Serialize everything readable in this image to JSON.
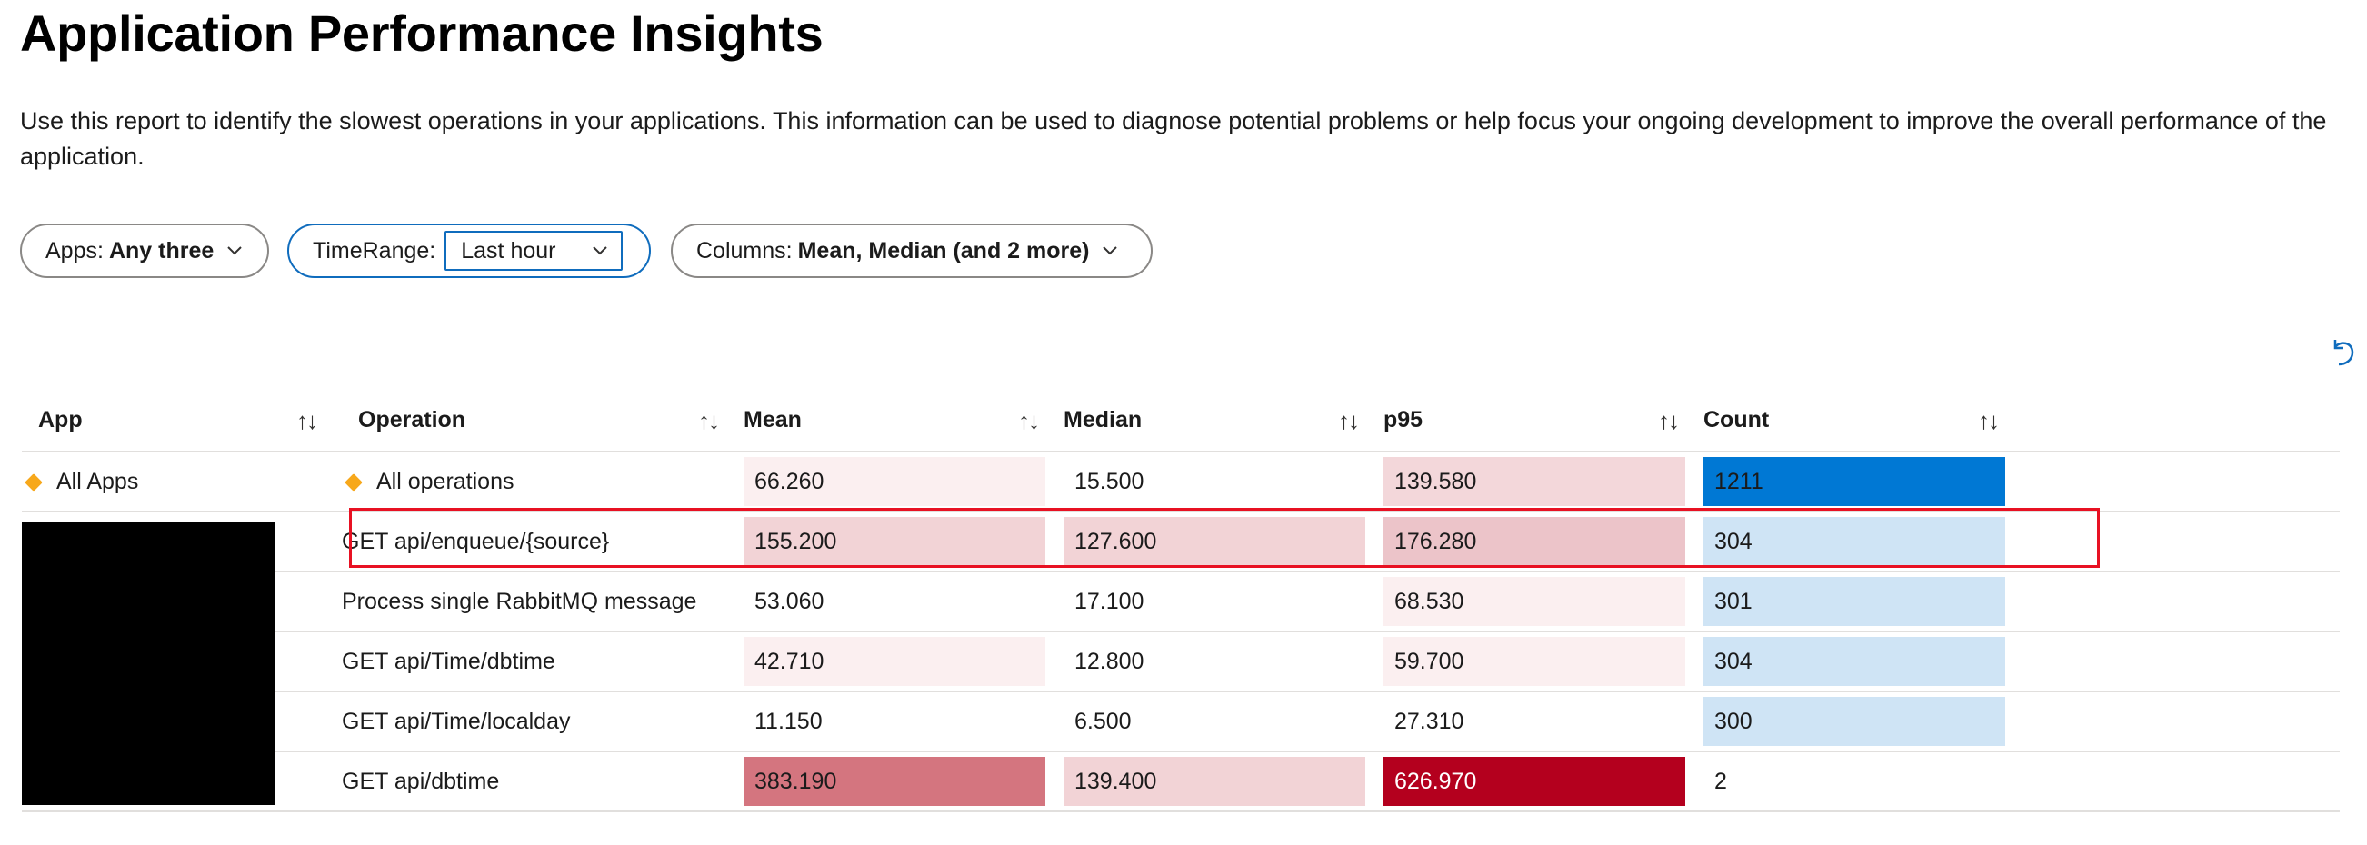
{
  "page": {
    "title": "Application Performance Insights",
    "description": "Use this report to identify the slowest operations in your applications. This information can be used to diagnose potential problems or help focus your ongoing development to improve the overall performance of the application."
  },
  "params": {
    "apps": {
      "label": "Apps:",
      "value": "Any three"
    },
    "timerange": {
      "label": "TimeRange:",
      "value": "Last hour"
    },
    "columns": {
      "label": "Columns:",
      "value": "Mean, Median (and 2 more)"
    }
  },
  "icons": {
    "undo": "undo-icon",
    "sort": "sort-arrows-icon",
    "chevron": "chevron-down-icon",
    "row_marker": "diamond-icon"
  },
  "colors": {
    "accent": "#0f6cbd",
    "highlight": "#e81123",
    "count_max": "#0078d4",
    "count_bar": "#cfe4f5",
    "p95_max": "#b4001e"
  },
  "table": {
    "headers": {
      "app": "App",
      "operation": "Operation",
      "mean": "Mean",
      "median": "Median",
      "p95": "p95",
      "count": "Count"
    },
    "sort_glyph": "↑↓",
    "rows": [
      {
        "app": "All Apps",
        "operation": "All operations",
        "mean": "66.260",
        "median": "15.500",
        "p95": "139.580",
        "count": "1211"
      },
      {
        "app": "",
        "operation": "GET api/enqueue/{source}",
        "mean": "155.200",
        "median": "127.600",
        "p95": "176.280",
        "count": "304"
      },
      {
        "app": "",
        "operation": "Process single RabbitMQ message",
        "mean": "53.060",
        "median": "17.100",
        "p95": "68.530",
        "count": "301"
      },
      {
        "app": "",
        "operation": "GET api/Time/dbtime",
        "mean": "42.710",
        "median": "12.800",
        "p95": "59.700",
        "count": "304"
      },
      {
        "app": "",
        "operation": "GET api/Time/localday",
        "mean": "11.150",
        "median": "6.500",
        "p95": "27.310",
        "count": "300"
      },
      {
        "app": "",
        "operation": "GET api/dbtime",
        "mean": "383.190",
        "median": "139.400",
        "p95": "626.970",
        "count": "2"
      }
    ]
  }
}
